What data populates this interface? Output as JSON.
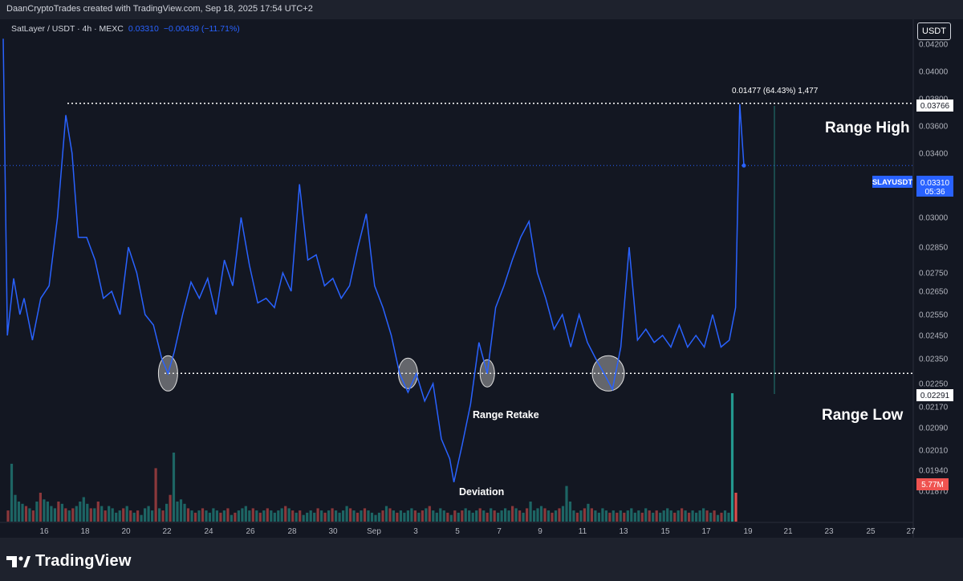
{
  "header": {
    "attribution": "DaanCryptoTrades created with TradingView.com, Sep 18, 2025 17:54 UTC+2"
  },
  "legend": {
    "symbol": "SatLayer / USDT · 4h · MEXC",
    "price": "0.03310",
    "change": "−0.00439 (−11.71%)"
  },
  "currency_button": "USDT",
  "footer": {
    "brand": "TradingView"
  },
  "colors": {
    "background": "#131722",
    "line": "#2962ff",
    "vol_up": "#26a69a",
    "vol_down": "#ef5350",
    "axis_text": "#b2b5be"
  },
  "labels": {
    "price_tag": "0.03310",
    "price_tag_countdown": "05:36",
    "symbol_tag": "SLAYUSDT",
    "range_high_value": "0.03766",
    "range_low_value": "0.02291",
    "volume_tag": "5.77M",
    "measure": "0.01477 (64.43%) 1,477"
  },
  "chart_data": {
    "type": "line",
    "title": "SatLayer / USDT · 4h · MEXC",
    "x_ticks": [
      "16",
      "18",
      "20",
      "22",
      "24",
      "26",
      "28",
      "30",
      "Sep",
      "3",
      "5",
      "7",
      "9",
      "11",
      "13",
      "15",
      "17",
      "19",
      "21",
      "23",
      "25",
      "27"
    ],
    "y_ticks": [
      "0.04200",
      "0.04000",
      "0.03800",
      "0.03600",
      "0.03400",
      "0.03200",
      "0.03000",
      "0.02850",
      "0.02750",
      "0.02650",
      "0.02550",
      "0.02450",
      "0.02350",
      "0.02250",
      "0.02170",
      "0.02090",
      "0.02010",
      "0.01940",
      "0.01870"
    ],
    "price_series": {
      "name": "SLAYUSDT",
      "points": [
        [
          "14",
          0.0424
        ],
        [
          "14.2",
          0.0245
        ],
        [
          "14.5",
          0.0272
        ],
        [
          "14.8",
          0.0255
        ],
        [
          "15",
          0.0262
        ],
        [
          "15.4",
          0.0243
        ],
        [
          "15.8",
          0.0262
        ],
        [
          "16.2",
          0.0268
        ],
        [
          "16.6",
          0.03
        ],
        [
          "17",
          0.0368
        ],
        [
          "17.3",
          0.034
        ],
        [
          "17.6",
          0.029
        ],
        [
          "18",
          0.029
        ],
        [
          "18.4",
          0.028
        ],
        [
          "18.8",
          0.0262
        ],
        [
          "19.2",
          0.0265
        ],
        [
          "19.6",
          0.0255
        ],
        [
          "20",
          0.0285
        ],
        [
          "20.4",
          0.0275
        ],
        [
          "20.8",
          0.0255
        ],
        [
          "21.2",
          0.025
        ],
        [
          "21.6",
          0.0235
        ],
        [
          "21.9",
          0.0229
        ],
        [
          "22.2",
          0.0238
        ],
        [
          "22.6",
          0.0255
        ],
        [
          "23",
          0.027
        ],
        [
          "23.4",
          0.0262
        ],
        [
          "23.8",
          0.0272
        ],
        [
          "24.2",
          0.0255
        ],
        [
          "24.6",
          0.028
        ],
        [
          "25",
          0.0268
        ],
        [
          "25.4",
          0.03
        ],
        [
          "25.8",
          0.0278
        ],
        [
          "26.2",
          0.026
        ],
        [
          "26.6",
          0.0262
        ],
        [
          "27",
          0.0258
        ],
        [
          "27.4",
          0.0275
        ],
        [
          "27.8",
          0.0265
        ],
        [
          "28.2",
          0.0318
        ],
        [
          "28.6",
          0.028
        ],
        [
          "29",
          0.0282
        ],
        [
          "29.4",
          0.0268
        ],
        [
          "29.8",
          0.0272
        ],
        [
          "30.2",
          0.0262
        ],
        [
          "30.6",
          0.0268
        ],
        [
          "31",
          0.0285
        ],
        [
          "31.4",
          0.0302
        ],
        [
          "31.8",
          0.0268
        ],
        [
          "Sep 1.2",
          0.0258
        ],
        [
          "Sep 1.6",
          0.0245
        ],
        [
          "Sep 2",
          0.0229
        ],
        [
          "Sep 2.4",
          0.0222
        ],
        [
          "Sep 2.8",
          0.0229
        ],
        [
          "Sep 3.2",
          0.0219
        ],
        [
          "Sep 3.6",
          0.0225
        ],
        [
          "Sep 4",
          0.0205
        ],
        [
          "Sep 4.4",
          0.0198
        ],
        [
          "Sep 4.6",
          0.019
        ],
        [
          "Sep 5",
          0.0203
        ],
        [
          "Sep 5.4",
          0.0218
        ],
        [
          "Sep 5.8",
          0.0242
        ],
        [
          "Sep 6.2",
          0.0229
        ],
        [
          "Sep 6.6",
          0.0258
        ],
        [
          "Sep 7",
          0.0268
        ],
        [
          "Sep 7.4",
          0.028
        ],
        [
          "Sep 7.8",
          0.029
        ],
        [
          "Sep 8.2",
          0.0298
        ],
        [
          "Sep 8.6",
          0.0275
        ],
        [
          "Sep 9",
          0.0262
        ],
        [
          "Sep 9.4",
          0.0248
        ],
        [
          "Sep 9.8",
          0.0255
        ],
        [
          "Sep 10.2",
          0.024
        ],
        [
          "Sep 10.6",
          0.0255
        ],
        [
          "Sep 11",
          0.0242
        ],
        [
          "Sep 11.4",
          0.0235
        ],
        [
          "Sep 11.8",
          0.0229
        ],
        [
          "Sep 12.2",
          0.0223
        ],
        [
          "Sep 12.6",
          0.024
        ],
        [
          "Sep 13",
          0.0285
        ],
        [
          "Sep 13.4",
          0.0243
        ],
        [
          "Sep 13.8",
          0.0248
        ],
        [
          "Sep 14.2",
          0.0242
        ],
        [
          "Sep 14.6",
          0.0245
        ],
        [
          "Sep 15",
          0.024
        ],
        [
          "Sep 15.4",
          0.025
        ],
        [
          "Sep 15.8",
          0.024
        ],
        [
          "Sep 16.2",
          0.0245
        ],
        [
          "Sep 16.6",
          0.024
        ],
        [
          "Sep 17",
          0.0255
        ],
        [
          "Sep 17.4",
          0.024
        ],
        [
          "Sep 17.8",
          0.0243
        ],
        [
          "Sep 18.1",
          0.0258
        ],
        [
          "Sep 18.3",
          0.0376
        ],
        [
          "Sep 18.5",
          0.0331
        ]
      ]
    },
    "volume_series": {
      "name": "Volume",
      "values_M": [
        0.5,
        2.6,
        1.2,
        0.9,
        0.8,
        0.7,
        0.6,
        0.5,
        0.9,
        1.3,
        1.0,
        0.9,
        0.7,
        0.6,
        0.9,
        0.8,
        0.6,
        0.5,
        0.6,
        0.7,
        0.9,
        1.1,
        0.8,
        0.6,
        0.6,
        0.9,
        0.7,
        0.5,
        0.7,
        0.6,
        0.4,
        0.5,
        0.6,
        0.7,
        0.5,
        0.4,
        0.5,
        0.3,
        0.6,
        0.7,
        0.5,
        2.4,
        0.6,
        0.5,
        0.8,
        1.2,
        3.1,
        0.9,
        1.0,
        0.8,
        0.6,
        0.5,
        0.4,
        0.5,
        0.6,
        0.5,
        0.4,
        0.6,
        0.5,
        0.4,
        0.5,
        0.6,
        0.3,
        0.4,
        0.5,
        0.6,
        0.7,
        0.5,
        0.6,
        0.5,
        0.4,
        0.5,
        0.6,
        0.5,
        0.4,
        0.5,
        0.6,
        0.7,
        0.6,
        0.5,
        0.4,
        0.5,
        0.3,
        0.4,
        0.5,
        0.4,
        0.6,
        0.5,
        0.4,
        0.5,
        0.6,
        0.5,
        0.4,
        0.5,
        0.7,
        0.6,
        0.5,
        0.4,
        0.5,
        0.6,
        0.5,
        0.4,
        0.3,
        0.4,
        0.5,
        0.7,
        0.6,
        0.5,
        0.4,
        0.5,
        0.4,
        0.5,
        0.6,
        0.5,
        0.4,
        0.5,
        0.6,
        0.7,
        0.5,
        0.4,
        0.6,
        0.5,
        0.4,
        0.3,
        0.5,
        0.4,
        0.5,
        0.6,
        0.5,
        0.4,
        0.5,
        0.6,
        0.5,
        0.4,
        0.6,
        0.5,
        0.4,
        0.5,
        0.6,
        0.5,
        0.7,
        0.6,
        0.5,
        0.4,
        0.6,
        0.9,
        0.5,
        0.6,
        0.7,
        0.6,
        0.5,
        0.4,
        0.5,
        0.6,
        0.7,
        1.6,
        0.9,
        0.5,
        0.4,
        0.5,
        0.6,
        0.8,
        0.6,
        0.5,
        0.4,
        0.6,
        0.5,
        0.4,
        0.5,
        0.4,
        0.5,
        0.4,
        0.5,
        0.6,
        0.4,
        0.5,
        0.4,
        0.6,
        0.5,
        0.4,
        0.5,
        0.4,
        0.5,
        0.6,
        0.5,
        0.4,
        0.5,
        0.6,
        0.5,
        0.4,
        0.5,
        0.4,
        0.5,
        0.6,
        0.5,
        0.4,
        0.5,
        0.3,
        0.4,
        0.5,
        0.4,
        5.77,
        1.3
      ],
      "label": "5.77M"
    },
    "range_high": 0.03766,
    "range_low": 0.02291,
    "current_price": 0.0331,
    "annotations": [
      "Range High",
      "Range Low",
      "Range Retake",
      "Deviation"
    ],
    "ylim": [
      0.0184,
      0.0428
    ]
  }
}
